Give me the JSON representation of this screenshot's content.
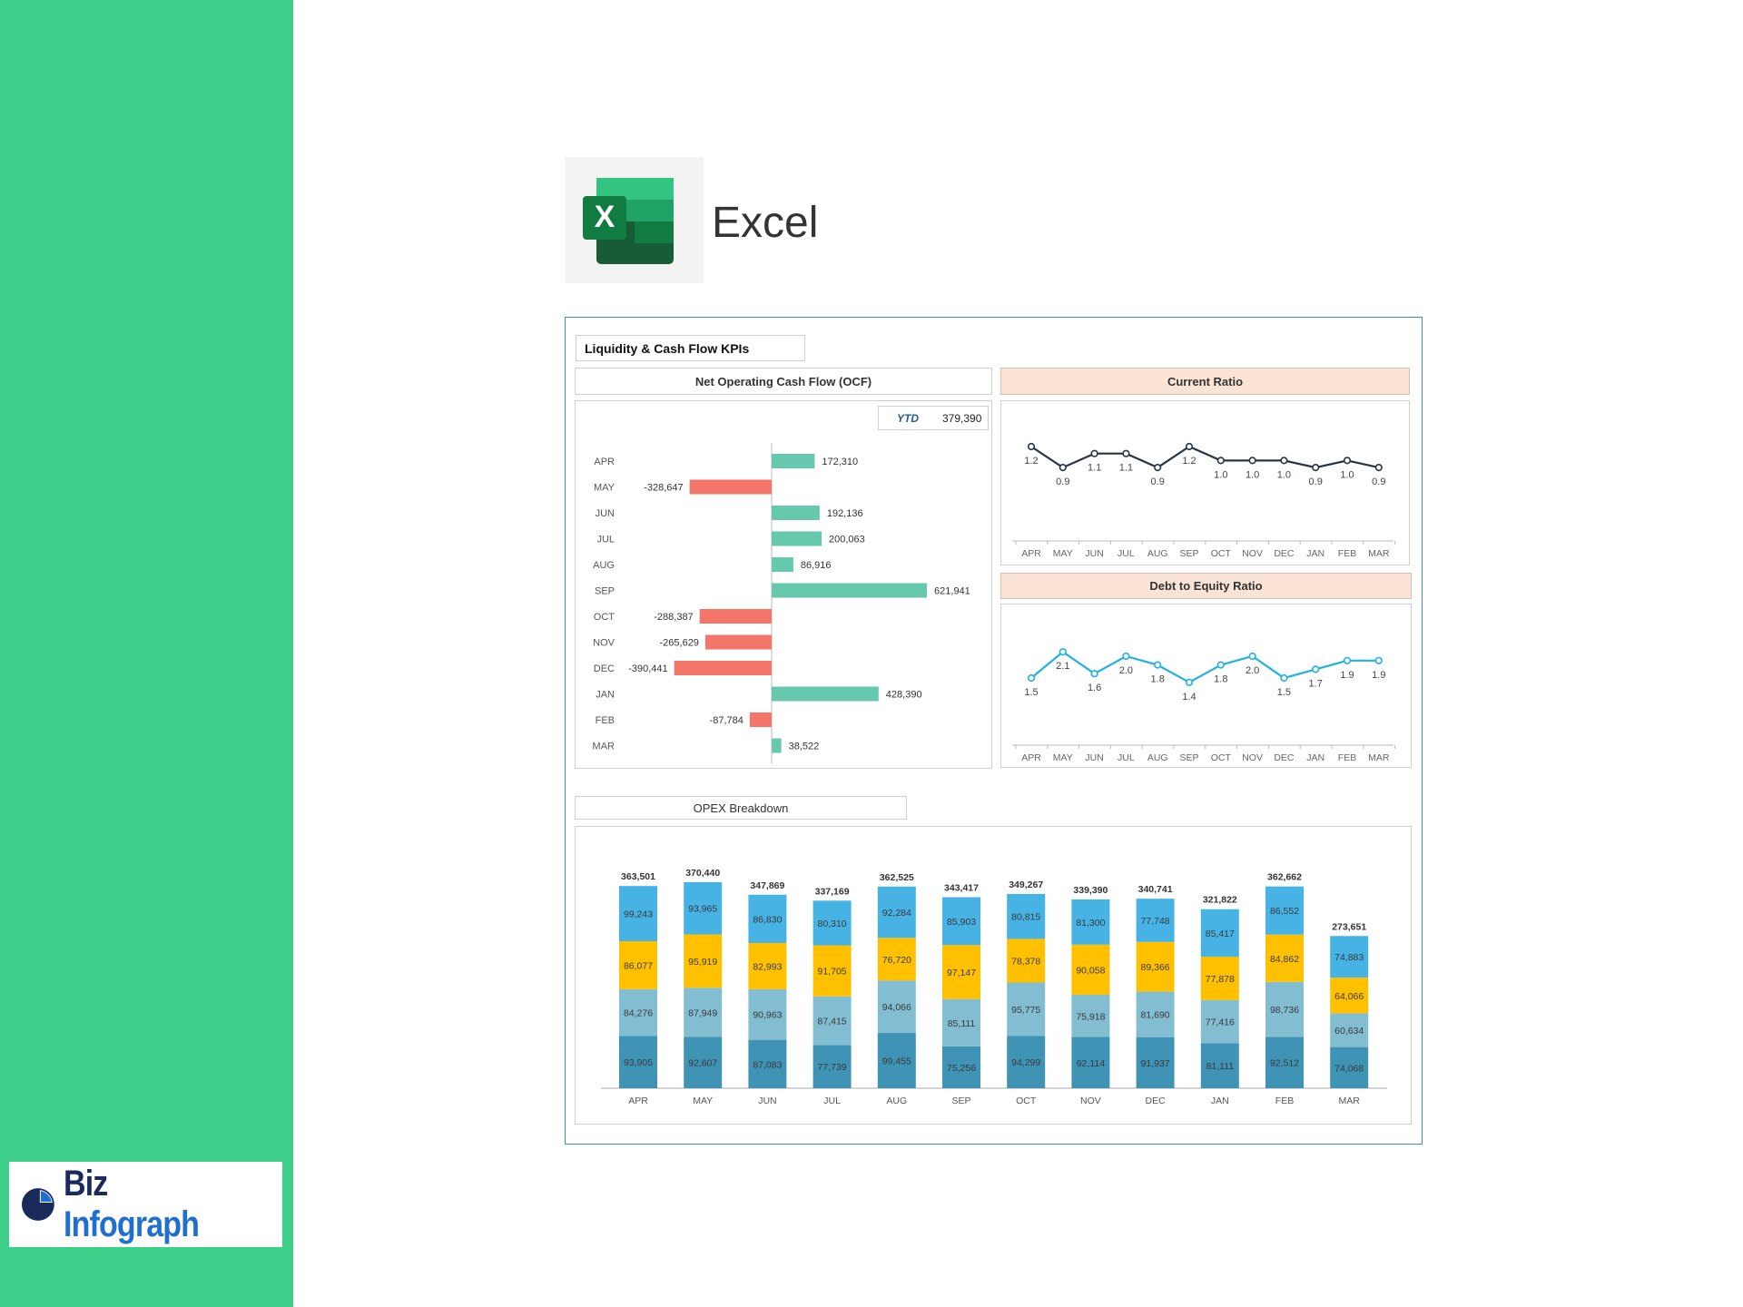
{
  "branding": {
    "app_name": "Excel",
    "company_logo": "Biz Infograph",
    "company_logo_parts": [
      "Biz",
      "Infograph"
    ]
  },
  "dashboard": {
    "title": "Liquidity & Cash Flow KPIs"
  },
  "ocf": {
    "header": "Net Operating Cash Flow (OCF)",
    "ytd_label": "YTD",
    "ytd_value": "379,390"
  },
  "current_ratio": {
    "header": "Current Ratio"
  },
  "debt_equity": {
    "header": "Debt to Equity Ratio"
  },
  "opex": {
    "header": "OPEX Breakdown"
  },
  "colors": {
    "positive": "#66c9ad",
    "negative": "#f4766a",
    "current_ratio_line": "#2a3340",
    "debt_equity_line": "#1fb0e6",
    "opex_series": [
      "#3f93b5",
      "#82bdd2",
      "#ffc000",
      "#47b2e4"
    ],
    "sidebar": "#3ccf8a",
    "frame": "#3b8fa8"
  },
  "chart_data": [
    {
      "type": "bar",
      "orientation": "horizontal",
      "categories": [
        "APR",
        "MAY",
        "JUN",
        "JUL",
        "AUG",
        "SEP",
        "OCT",
        "NOV",
        "DEC",
        "JAN",
        "FEB",
        "MAR"
      ],
      "values": [
        172310,
        -328647,
        192136,
        200063,
        86916,
        621941,
        -288387,
        -265629,
        -390441,
        428390,
        -87784,
        38522
      ],
      "labels": [
        "172,310",
        "-328,647",
        "192,136",
        "200,063",
        "86,916",
        "621,941",
        "-288,387",
        "-265,629",
        "-390,441",
        "428,390",
        "-87,784",
        "38,522"
      ]
    },
    {
      "type": "line",
      "categories": [
        "APR",
        "MAY",
        "JUN",
        "JUL",
        "AUG",
        "SEP",
        "OCT",
        "NOV",
        "DEC",
        "JAN",
        "FEB",
        "MAR"
      ],
      "values": [
        1.2,
        0.9,
        1.1,
        1.1,
        0.9,
        1.2,
        1.0,
        1.0,
        1.0,
        0.9,
        1.0,
        0.9
      ],
      "labels": [
        "1.2",
        "0.9",
        "1.1",
        "1.1",
        "0.9",
        "1.2",
        "1.0",
        "1.0",
        "1.0",
        "0.9",
        "1.0",
        "0.9"
      ]
    },
    {
      "type": "line",
      "categories": [
        "APR",
        "MAY",
        "JUN",
        "JUL",
        "AUG",
        "SEP",
        "OCT",
        "NOV",
        "DEC",
        "JAN",
        "FEB",
        "MAR"
      ],
      "values": [
        1.5,
        2.1,
        1.6,
        2.0,
        1.8,
        1.4,
        1.8,
        2.0,
        1.5,
        1.7,
        1.9,
        1.9
      ],
      "labels": [
        "1.5",
        "2.1",
        "1.6",
        "2.0",
        "1.8",
        "1.4",
        "1.8",
        "2.0",
        "1.5",
        "1.7",
        "1.9",
        "1.9"
      ]
    },
    {
      "type": "bar",
      "stacked": true,
      "categories": [
        "APR",
        "MAY",
        "JUN",
        "JUL",
        "AUG",
        "SEP",
        "OCT",
        "NOV",
        "DEC",
        "JAN",
        "FEB",
        "MAR"
      ],
      "series": [
        {
          "values": [
            93905,
            92607,
            87083,
            77739,
            99455,
            75256,
            94299,
            92114,
            91937,
            81111,
            92512,
            74068
          ]
        },
        {
          "values": [
            84276,
            87949,
            90963,
            87415,
            94066,
            85111,
            95775,
            75918,
            81690,
            77416,
            98736,
            60634
          ]
        },
        {
          "values": [
            86077,
            95919,
            82993,
            91705,
            76720,
            97147,
            78378,
            90058,
            89366,
            77878,
            84862,
            64066
          ]
        },
        {
          "values": [
            99243,
            93965,
            86830,
            80310,
            92284,
            85903,
            80815,
            81300,
            77748,
            85417,
            86552,
            74883
          ]
        }
      ],
      "totals": [
        "363,501",
        "370,440",
        "347,869",
        "337,169",
        "362,525",
        "343,417",
        "349,267",
        "339,390",
        "340,741",
        "321,822",
        "362,662",
        "273,651"
      ]
    }
  ]
}
